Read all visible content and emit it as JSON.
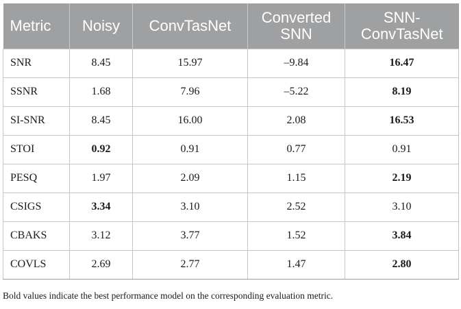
{
  "table": {
    "headers": [
      [
        "Metric"
      ],
      [
        "Noisy"
      ],
      [
        "ConvTasNet"
      ],
      [
        "Converted",
        "SNN"
      ],
      [
        "SNN-",
        "ConvTasNet"
      ]
    ],
    "rows": [
      {
        "metric": "SNR",
        "cells": [
          {
            "value": "8.45",
            "bold": false
          },
          {
            "value": "15.97",
            "bold": false
          },
          {
            "value": "–9.84",
            "bold": false
          },
          {
            "value": "16.47",
            "bold": true
          }
        ]
      },
      {
        "metric": "SSNR",
        "cells": [
          {
            "value": "1.68",
            "bold": false
          },
          {
            "value": "7.96",
            "bold": false
          },
          {
            "value": "–5.22",
            "bold": false
          },
          {
            "value": "8.19",
            "bold": true
          }
        ]
      },
      {
        "metric": "SI-SNR",
        "cells": [
          {
            "value": "8.45",
            "bold": false
          },
          {
            "value": "16.00",
            "bold": false
          },
          {
            "value": "2.08",
            "bold": false
          },
          {
            "value": "16.53",
            "bold": true
          }
        ]
      },
      {
        "metric": "STOI",
        "cells": [
          {
            "value": "0.92",
            "bold": true
          },
          {
            "value": "0.91",
            "bold": false
          },
          {
            "value": "0.77",
            "bold": false
          },
          {
            "value": "0.91",
            "bold": false
          }
        ]
      },
      {
        "metric": "PESQ",
        "cells": [
          {
            "value": "1.97",
            "bold": false
          },
          {
            "value": "2.09",
            "bold": false
          },
          {
            "value": "1.15",
            "bold": false
          },
          {
            "value": "2.19",
            "bold": true
          }
        ]
      },
      {
        "metric": "CSIGS",
        "cells": [
          {
            "value": "3.34",
            "bold": true
          },
          {
            "value": "3.10",
            "bold": false
          },
          {
            "value": "2.52",
            "bold": false
          },
          {
            "value": "3.10",
            "bold": false
          }
        ]
      },
      {
        "metric": "CBAKS",
        "cells": [
          {
            "value": "3.12",
            "bold": false
          },
          {
            "value": "3.77",
            "bold": false
          },
          {
            "value": "1.52",
            "bold": false
          },
          {
            "value": "3.84",
            "bold": true
          }
        ]
      },
      {
        "metric": "COVLS",
        "cells": [
          {
            "value": "2.69",
            "bold": false
          },
          {
            "value": "2.77",
            "bold": false
          },
          {
            "value": "1.47",
            "bold": false
          },
          {
            "value": "2.80",
            "bold": true
          }
        ]
      }
    ]
  },
  "footnote": "Bold values indicate the best performance model on the corresponding evaluation metric.",
  "colors": {
    "header_bg": "#9fa0a2",
    "header_text": "#ffffff",
    "border": "#c4c5c7"
  }
}
